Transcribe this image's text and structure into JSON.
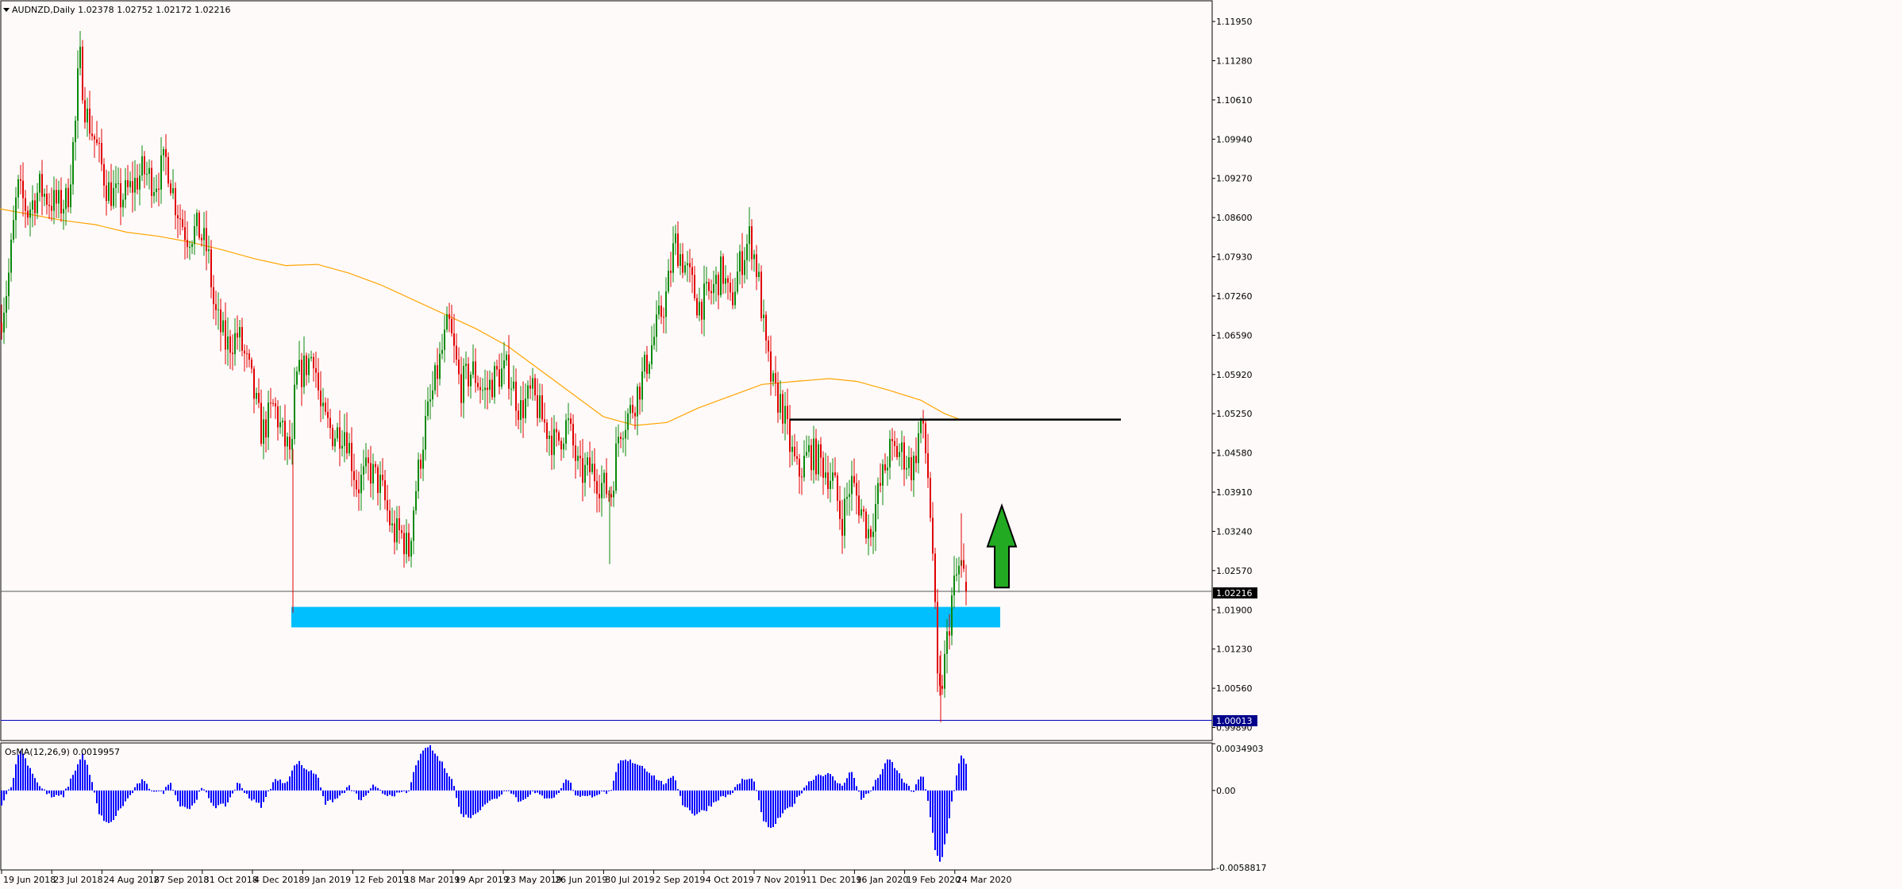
{
  "header": {
    "symbol_line": "AUDNZD,Daily  1.02378 1.02752 1.02172 1.02216",
    "osc_line": "OsMA(12,26,9) 0.0019957"
  },
  "colors": {
    "background": "#fffafa",
    "bull_candle": "#0a8a0a",
    "bear_candle": "#e00000",
    "ma_line": "#ffa500",
    "support_zone": "#00bfff",
    "resistance_line": "#000000",
    "osma_bars": "#0000ff",
    "up_arrow": "#22aa22",
    "low_line": "#0000c0",
    "price_tag_bg": "#000000",
    "low_tag_bg": "#00008b"
  },
  "chart_data": [
    {
      "type": "candlestick",
      "title": "AUDNZD,Daily",
      "ohlc_last": {
        "open": 1.02378,
        "high": 1.02752,
        "low": 1.02172,
        "close": 1.02216
      },
      "current_price_label": "1.02216",
      "low_label": "1.00013",
      "ylim": [
        0.9968,
        1.1229
      ],
      "y_ticks": [
        "1.11950",
        "1.11280",
        "1.10610",
        "1.09940",
        "1.09270",
        "1.08600",
        "1.07930",
        "1.07260",
        "1.06590",
        "1.05920",
        "1.05250",
        "1.04580",
        "1.03910",
        "1.03240",
        "1.02570",
        "1.01900",
        "1.01230",
        "1.00560",
        "0.99890"
      ],
      "x_ticks": [
        "19 Jun 2018",
        "23 Jul 2018",
        "24 Aug 2018",
        "27 Sep 2018",
        "31 Oct 2018",
        "4 Dec 2018",
        "9 Jan 2019",
        "12 Feb 2019",
        "18 Mar 2019",
        "19 Apr 2019",
        "23 May 2019",
        "26 Jun 2019",
        "30 Jul 2019",
        "2 Sep 2019",
        "4 Oct 2019",
        "7 Nov 2019",
        "11 Dec 2019",
        "16 Jan 2020",
        "19 Feb 2020",
        "24 Mar 2020"
      ],
      "close_path": [
        [
          0,
          1.068
        ],
        [
          10,
          1.075
        ],
        [
          22,
          1.091
        ],
        [
          35,
          1.087
        ],
        [
          50,
          1.091
        ],
        [
          62,
          1.089
        ],
        [
          75,
          1.088
        ],
        [
          85,
          1.089
        ],
        [
          95,
          1.102
        ],
        [
          100,
          1.114
        ],
        [
          108,
          1.104
        ],
        [
          120,
          1.099
        ],
        [
          135,
          1.091
        ],
        [
          150,
          1.089
        ],
        [
          165,
          1.091
        ],
        [
          180,
          1.094
        ],
        [
          195,
          1.092
        ],
        [
          210,
          1.096
        ],
        [
          220,
          1.089
        ],
        [
          235,
          1.083
        ],
        [
          250,
          1.084
        ],
        [
          262,
          1.08
        ],
        [
          270,
          1.07
        ],
        [
          285,
          1.064
        ],
        [
          300,
          1.066
        ],
        [
          315,
          1.059
        ],
        [
          330,
          1.049
        ],
        [
          345,
          1.054
        ],
        [
          360,
          1.047
        ],
        [
          368,
          1.046
        ],
        [
          372,
          1.058
        ],
        [
          382,
          1.06
        ],
        [
          395,
          1.063
        ],
        [
          405,
          1.052
        ],
        [
          420,
          1.049
        ],
        [
          435,
          1.05
        ],
        [
          450,
          1.04
        ],
        [
          465,
          1.043
        ],
        [
          480,
          1.04
        ],
        [
          495,
          1.032
        ],
        [
          505,
          1.032
        ],
        [
          515,
          1.029
        ],
        [
          522,
          1.038
        ],
        [
          535,
          1.05
        ],
        [
          550,
          1.059
        ],
        [
          565,
          1.068
        ],
        [
          580,
          1.057
        ],
        [
          595,
          1.06
        ],
        [
          610,
          1.056
        ],
        [
          625,
          1.059
        ],
        [
          640,
          1.06
        ],
        [
          655,
          1.053
        ],
        [
          670,
          1.056
        ],
        [
          685,
          1.051
        ],
        [
          700,
          1.047
        ],
        [
          715,
          1.051
        ],
        [
          730,
          1.042
        ],
        [
          745,
          1.043
        ],
        [
          760,
          1.04
        ],
        [
          770,
          1.039
        ],
        [
          780,
          1.05
        ],
        [
          795,
          1.053
        ],
        [
          810,
          1.059
        ],
        [
          825,
          1.066
        ],
        [
          840,
          1.073
        ],
        [
          850,
          1.082
        ],
        [
          865,
          1.077
        ],
        [
          880,
          1.071
        ],
        [
          895,
          1.073
        ],
        [
          910,
          1.077
        ],
        [
          920,
          1.071
        ],
        [
          930,
          1.077
        ],
        [
          945,
          1.083
        ],
        [
          955,
          1.076
        ],
        [
          965,
          1.063
        ],
        [
          975,
          1.056
        ],
        [
          985,
          1.054
        ],
        [
          995,
          1.047
        ],
        [
          1005,
          1.042
        ],
        [
          1020,
          1.046
        ],
        [
          1035,
          1.044
        ],
        [
          1050,
          1.041
        ],
        [
          1060,
          1.034
        ],
        [
          1072,
          1.041
        ],
        [
          1085,
          1.036
        ],
        [
          1095,
          1.032
        ],
        [
          1105,
          1.038
        ],
        [
          1120,
          1.046
        ],
        [
          1135,
          1.046
        ],
        [
          1150,
          1.043
        ],
        [
          1160,
          1.051
        ],
        [
          1168,
          1.044
        ],
        [
          1175,
          1.029
        ],
        [
          1182,
          1.002
        ],
        [
          1190,
          1.01
        ],
        [
          1200,
          1.022
        ],
        [
          1210,
          1.027
        ],
        [
          1218,
          1.022
        ]
      ],
      "moving_average_path": [
        [
          0,
          1.0875
        ],
        [
          40,
          1.0865
        ],
        [
          80,
          1.0855
        ],
        [
          120,
          1.0848
        ],
        [
          160,
          1.0835
        ],
        [
          200,
          1.0828
        ],
        [
          240,
          1.0818
        ],
        [
          280,
          1.0805
        ],
        [
          320,
          1.079
        ],
        [
          360,
          1.0778
        ],
        [
          400,
          1.078
        ],
        [
          440,
          1.0765
        ],
        [
          480,
          1.0745
        ],
        [
          520,
          1.072
        ],
        [
          560,
          1.0695
        ],
        [
          600,
          1.067
        ],
        [
          640,
          1.064
        ],
        [
          680,
          1.06
        ],
        [
          720,
          1.056
        ],
        [
          760,
          1.052
        ],
        [
          800,
          1.0505
        ],
        [
          840,
          1.051
        ],
        [
          880,
          1.0535
        ],
        [
          920,
          1.0555
        ],
        [
          960,
          1.0575
        ],
        [
          1000,
          1.058
        ],
        [
          1045,
          1.0585
        ],
        [
          1080,
          1.058
        ],
        [
          1120,
          1.0565
        ],
        [
          1160,
          1.0548
        ],
        [
          1190,
          1.0525
        ],
        [
          1210,
          1.0515
        ]
      ],
      "support_zone": {
        "x_start": 367,
        "x_end": 1260,
        "price_low": 1.016,
        "price_high": 1.0195
      },
      "resistance_line": {
        "x_start": 995,
        "x_end": 1412,
        "price": 1.0515
      },
      "up_arrow": {
        "x": 1262,
        "price_base": 1.0228,
        "price_tip": 1.0368
      }
    },
    {
      "type": "bar",
      "title": "OsMA(12,26,9)",
      "current_value": "0.0019957",
      "ylim": [
        -0.00588,
        0.00349
      ],
      "y_ticks": [
        "0.0034903",
        "0.00",
        "-0.0058817"
      ],
      "values_path": [
        [
          0,
          -0.0012
        ],
        [
          15,
          0.0005
        ],
        [
          25,
          0.0032
        ],
        [
          35,
          0.002
        ],
        [
          50,
          0.0003
        ],
        [
          65,
          -0.0005
        ],
        [
          80,
          -0.0004
        ],
        [
          92,
          0.0012
        ],
        [
          105,
          0.0028
        ],
        [
          115,
          0.0008
        ],
        [
          125,
          -0.0018
        ],
        [
          138,
          -0.0026
        ],
        [
          150,
          -0.0015
        ],
        [
          165,
          -0.0003
        ],
        [
          178,
          0.0008
        ],
        [
          190,
          0.0001
        ],
        [
          205,
          -0.0002
        ],
        [
          215,
          0.0007
        ],
        [
          225,
          -0.001
        ],
        [
          240,
          -0.0014
        ],
        [
          255,
          0.0002
        ],
        [
          270,
          -0.0012
        ],
        [
          285,
          -0.0011
        ],
        [
          300,
          0.0006
        ],
        [
          315,
          -0.0006
        ],
        [
          330,
          -0.0012
        ],
        [
          345,
          0.0008
        ],
        [
          360,
          0.0006
        ],
        [
          375,
          0.0022
        ],
        [
          385,
          0.0016
        ],
        [
          400,
          0.0012
        ],
        [
          410,
          -0.001
        ],
        [
          425,
          -0.0006
        ],
        [
          440,
          0.0003
        ],
        [
          455,
          -0.0008
        ],
        [
          470,
          0.0003
        ],
        [
          485,
          -0.0003
        ],
        [
          500,
          -0.0003
        ],
        [
          515,
          -0.0001
        ],
        [
          525,
          0.0022
        ],
        [
          540,
          0.0034
        ],
        [
          555,
          0.0022
        ],
        [
          570,
          0.0008
        ],
        [
          580,
          -0.0018
        ],
        [
          595,
          -0.002
        ],
        [
          610,
          -0.001
        ],
        [
          625,
          -0.0006
        ],
        [
          640,
          0.0002
        ],
        [
          655,
          -0.0009
        ],
        [
          670,
          -0.0001
        ],
        [
          685,
          -0.0005
        ],
        [
          700,
          -0.0005
        ],
        [
          715,
          0.001
        ],
        [
          725,
          -0.0003
        ],
        [
          740,
          -0.0005
        ],
        [
          755,
          -0.0002
        ],
        [
          770,
          -0.0001
        ],
        [
          780,
          0.0022
        ],
        [
          795,
          0.0022
        ],
        [
          810,
          0.0018
        ],
        [
          825,
          0.001
        ],
        [
          835,
          0.0005
        ],
        [
          850,
          0.001
        ],
        [
          860,
          -0.001
        ],
        [
          875,
          -0.0018
        ],
        [
          890,
          -0.0014
        ],
        [
          905,
          -0.0006
        ],
        [
          920,
          -0.0003
        ],
        [
          935,
          0.0008
        ],
        [
          950,
          0.0008
        ],
        [
          960,
          -0.002
        ],
        [
          970,
          -0.003
        ],
        [
          985,
          -0.0018
        ],
        [
          1000,
          -0.001
        ],
        [
          1015,
          0.0004
        ],
        [
          1030,
          0.0012
        ],
        [
          1045,
          0.0012
        ],
        [
          1060,
          0.0003
        ],
        [
          1072,
          0.0015
        ],
        [
          1085,
          -0.0006
        ],
        [
          1095,
          -0.0002
        ],
        [
          1110,
          0.0014
        ],
        [
          1120,
          0.0024
        ],
        [
          1135,
          0.001
        ],
        [
          1150,
          -0.0002
        ],
        [
          1162,
          0.0014
        ],
        [
          1170,
          -0.0012
        ],
        [
          1178,
          -0.0045
        ],
        [
          1185,
          -0.0055
        ],
        [
          1192,
          -0.0035
        ],
        [
          1200,
          -0.0005
        ],
        [
          1210,
          0.0026
        ],
        [
          1218,
          0.002
        ]
      ]
    }
  ]
}
